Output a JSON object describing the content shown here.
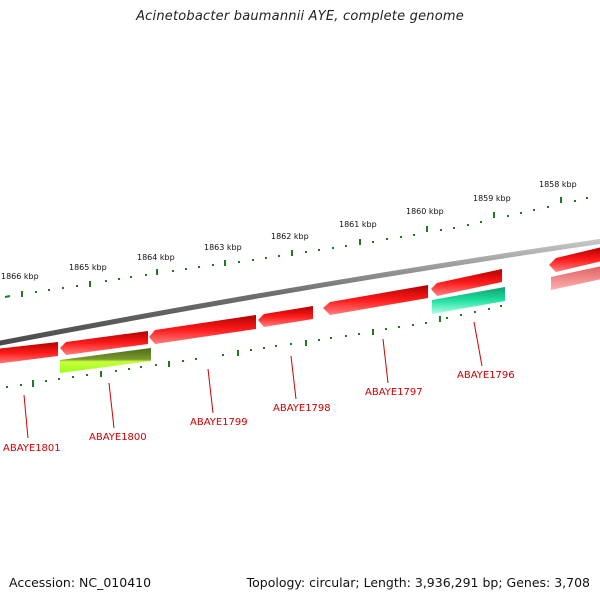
{
  "title": "Acinetobacter baumannii AYE, complete genome",
  "accession_label": "Accession: NC_010410",
  "topology_label": "Topology: circular; Length: 3,936,291 bp; Genes: 3,708",
  "colors": {
    "backbone": "#808080",
    "forward_gene": "#e60000",
    "reverse_gene": "#e60000",
    "reverse_gene_faded": "#f08080",
    "ticks": "#1f7a1f",
    "label": "#cc0000",
    "feature_green": "#6b8e23",
    "feature_yellowgreen": "#b5ff2a",
    "feature_teal": "#20e0a0"
  },
  "scale_labels": [
    "1866 kbp",
    "1865 kbp",
    "1864 kbp",
    "1863 kbp",
    "1862 kbp",
    "1861 kbp",
    "1860 kbp",
    "1859 kbp",
    "1858 kbp"
  ],
  "gene_labels": [
    "ABAYE1801",
    "ABAYE1800",
    "ABAYE1799",
    "ABAYE1798",
    "ABAYE1797",
    "ABAYE1796"
  ]
}
